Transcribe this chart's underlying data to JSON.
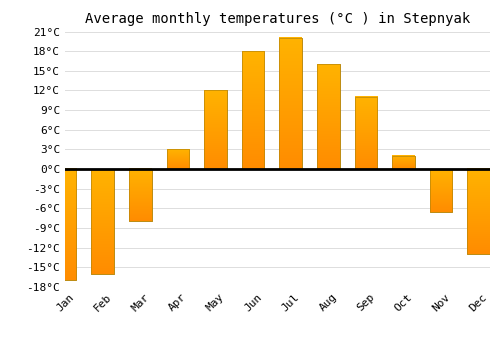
{
  "title": "Average monthly temperatures (°C ) in Stepnyak",
  "months": [
    "Jan",
    "Feb",
    "Mar",
    "Apr",
    "May",
    "Jun",
    "Jul",
    "Aug",
    "Sep",
    "Oct",
    "Nov",
    "Dec"
  ],
  "values": [
    -17,
    -16,
    -8,
    3,
    12,
    18,
    20,
    16,
    11,
    2,
    -6.5,
    -13
  ],
  "bar_color_top": "#FFB300",
  "bar_color_bottom": "#FF8C00",
  "bar_edge_color": "#B8860B",
  "ylim": [
    -18,
    21
  ],
  "yticks": [
    -18,
    -15,
    -12,
    -9,
    -6,
    -3,
    0,
    3,
    6,
    9,
    12,
    15,
    18,
    21
  ],
  "ytick_labels": [
    "-18°C",
    "-15°C",
    "-12°C",
    "-9°C",
    "-6°C",
    "-3°C",
    "0°C",
    "3°C",
    "6°C",
    "9°C",
    "12°C",
    "15°C",
    "18°C",
    "21°C"
  ],
  "background_color": "#ffffff",
  "grid_color": "#dddddd",
  "zero_line_color": "#000000",
  "title_fontsize": 10,
  "tick_fontsize": 8,
  "bar_width": 0.6
}
